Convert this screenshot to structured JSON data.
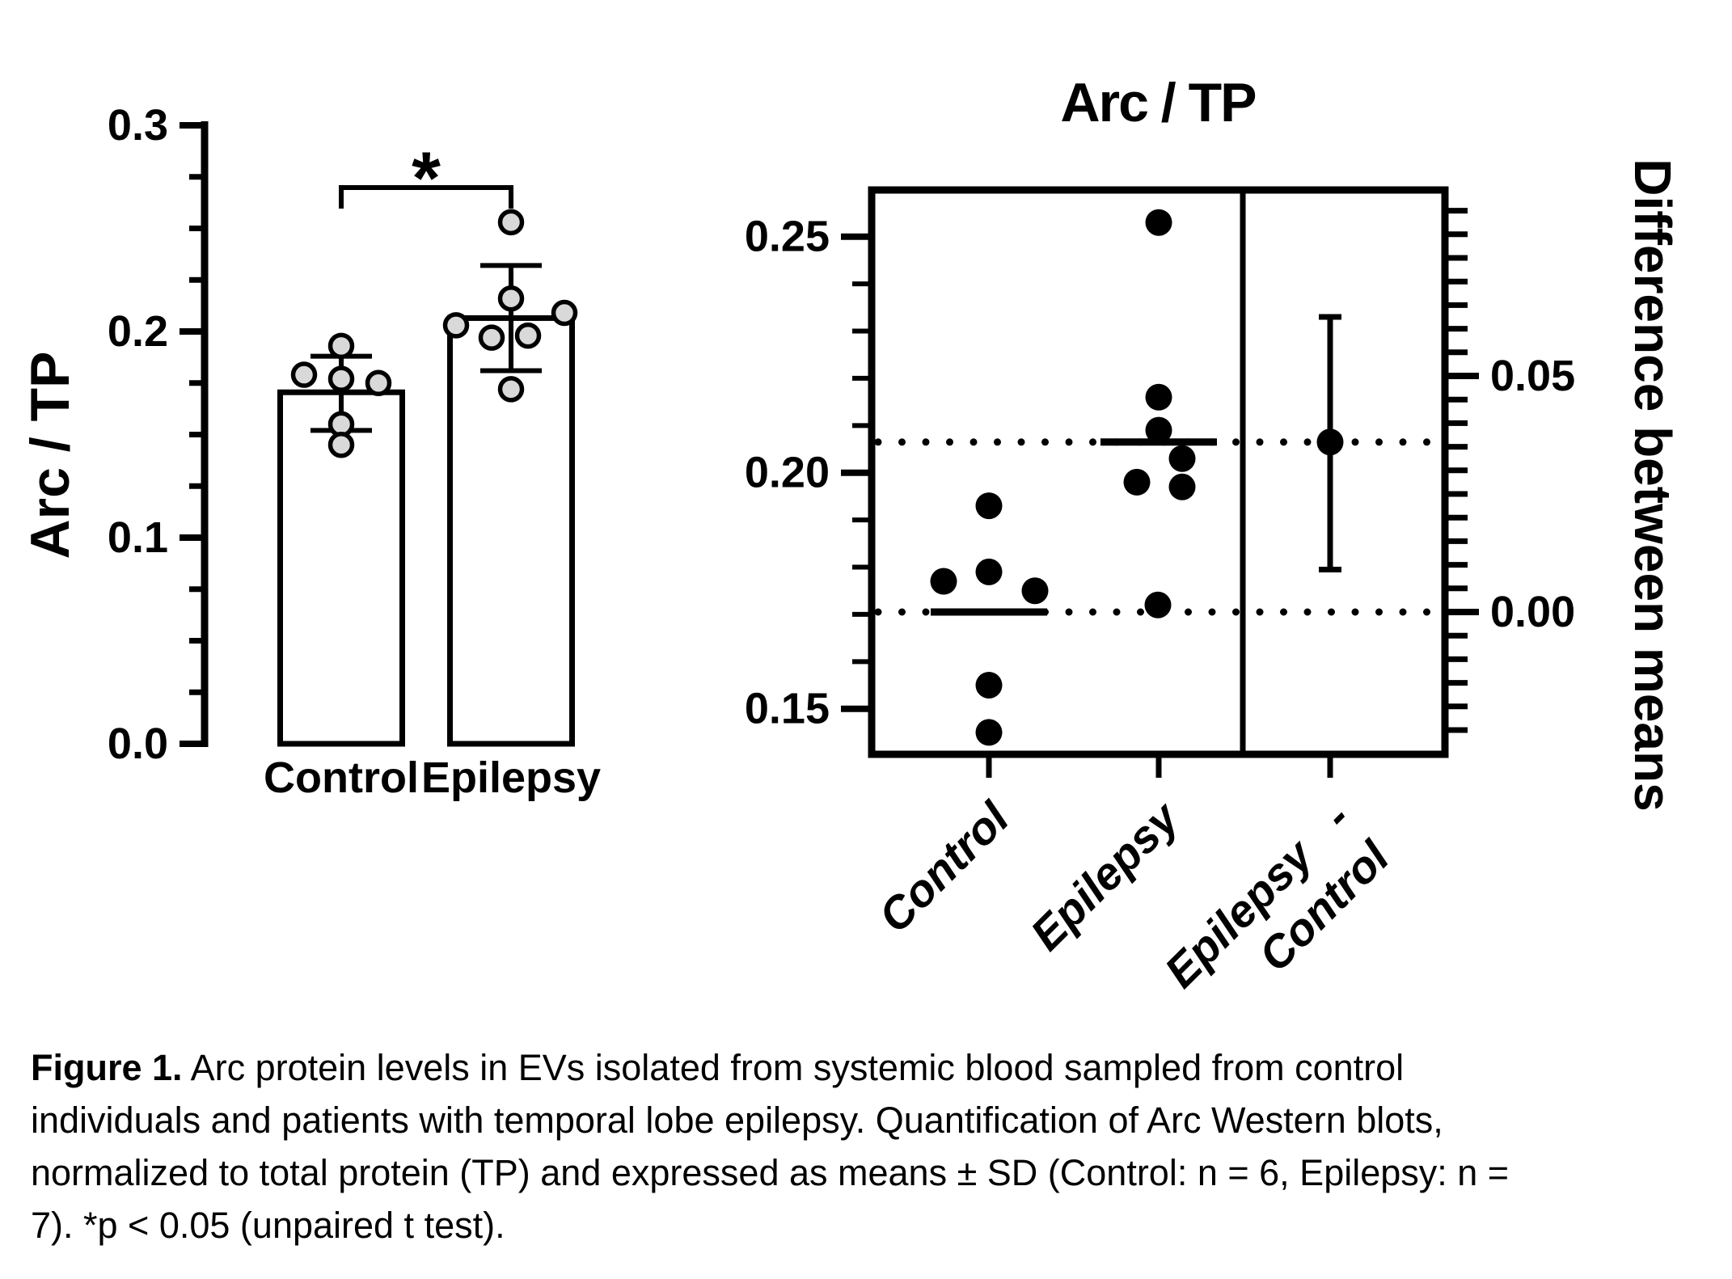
{
  "colors": {
    "ink": "#000000",
    "point_fill": "#d9d9d9",
    "background": "#ffffff"
  },
  "chart_data": [
    {
      "id": "bar-chart",
      "type": "bar",
      "ylabel": "Arc / TP",
      "ylim": [
        0,
        0.3
      ],
      "yticks": [
        0,
        0.1,
        0.2,
        0.3
      ],
      "ytick_labels": [
        "0.0",
        "0.1",
        "0.2",
        "0.3"
      ],
      "minor_tick_step": 0.025,
      "categories": [
        "Control",
        "Epilepsy"
      ],
      "series": [
        {
          "name": "Control",
          "mean": 0.1705,
          "sd_low": 0.152,
          "sd_high": 0.188,
          "points": [
            {
              "v": 0.193,
              "dx": 0
            },
            {
              "v": 0.179,
              "dx": -46
            },
            {
              "v": 0.177,
              "dx": 0
            },
            {
              "v": 0.175,
              "dx": 46
            },
            {
              "v": 0.155,
              "dx": 0
            },
            {
              "v": 0.145,
              "dx": 0
            }
          ]
        },
        {
          "name": "Epilepsy",
          "mean": 0.2065,
          "sd_low": 0.181,
          "sd_high": 0.232,
          "points": [
            {
              "v": 0.253,
              "dx": 0
            },
            {
              "v": 0.216,
              "dx": 0
            },
            {
              "v": 0.209,
              "dx": 66
            },
            {
              "v": 0.203,
              "dx": -68
            },
            {
              "v": 0.198,
              "dx": 21
            },
            {
              "v": 0.197,
              "dx": -24
            },
            {
              "v": 0.172,
              "dx": 0
            }
          ]
        }
      ],
      "significance": {
        "symbol": "*",
        "between": [
          "Control",
          "Epilepsy"
        ]
      }
    },
    {
      "id": "estimation-plot",
      "type": "scatter",
      "title": "Arc / TP",
      "left_axis": {
        "ylim": [
          0.14,
          0.26
        ],
        "ticks": [
          0.15,
          0.2,
          0.25
        ],
        "tick_labels": [
          "0.15",
          "0.20",
          "0.25"
        ],
        "minor_step": 0.01
      },
      "right_axis": {
        "label": "Difference between means",
        "ticks": [
          0,
          0.05
        ],
        "tick_labels": [
          "0.00",
          "0.05"
        ],
        "minor_step": 0.005,
        "zero_at_left_value": 0.1705
      },
      "groups": [
        {
          "name": "Control",
          "mean": 0.1705,
          "points": [
            {
              "v": 0.193,
              "dx": 0
            },
            {
              "v": 0.179,
              "dx": 0
            },
            {
              "v": 0.177,
              "dx": -56
            },
            {
              "v": 0.175,
              "dx": 57
            },
            {
              "v": 0.155,
              "dx": 0
            },
            {
              "v": 0.145,
              "dx": 0
            }
          ]
        },
        {
          "name": "Epilepsy",
          "mean": 0.2065,
          "points": [
            {
              "v": 0.253,
              "dx": 0
            },
            {
              "v": 0.216,
              "dx": 0
            },
            {
              "v": 0.209,
              "dx": 0
            },
            {
              "v": 0.203,
              "dx": 29
            },
            {
              "v": 0.197,
              "dx": 29
            },
            {
              "v": 0.198,
              "dx": -27
            },
            {
              "v": 0.172,
              "dx": -1
            }
          ]
        }
      ],
      "difference": {
        "label_line1": "Epilepsy   -",
        "label_line2": "Control",
        "mean": 0.036,
        "lower": 0.009,
        "upper": 0.0625
      },
      "dotted_lines": [
        0.2065,
        0.1705
      ]
    }
  ],
  "caption": {
    "lead": "Figure 1.",
    "line1_rest": "Arc protein levels in EVs isolated from systemic blood sampled from control",
    "line2": "individuals and patients with temporal lobe epilepsy. Quantification of Arc Western blots,",
    "line3": "normalized to total protein (TP) and expressed as means ± SD (Control: n = 6, Epilepsy: n =",
    "line4": "7). *p < 0.05 (unpaired t test)."
  }
}
